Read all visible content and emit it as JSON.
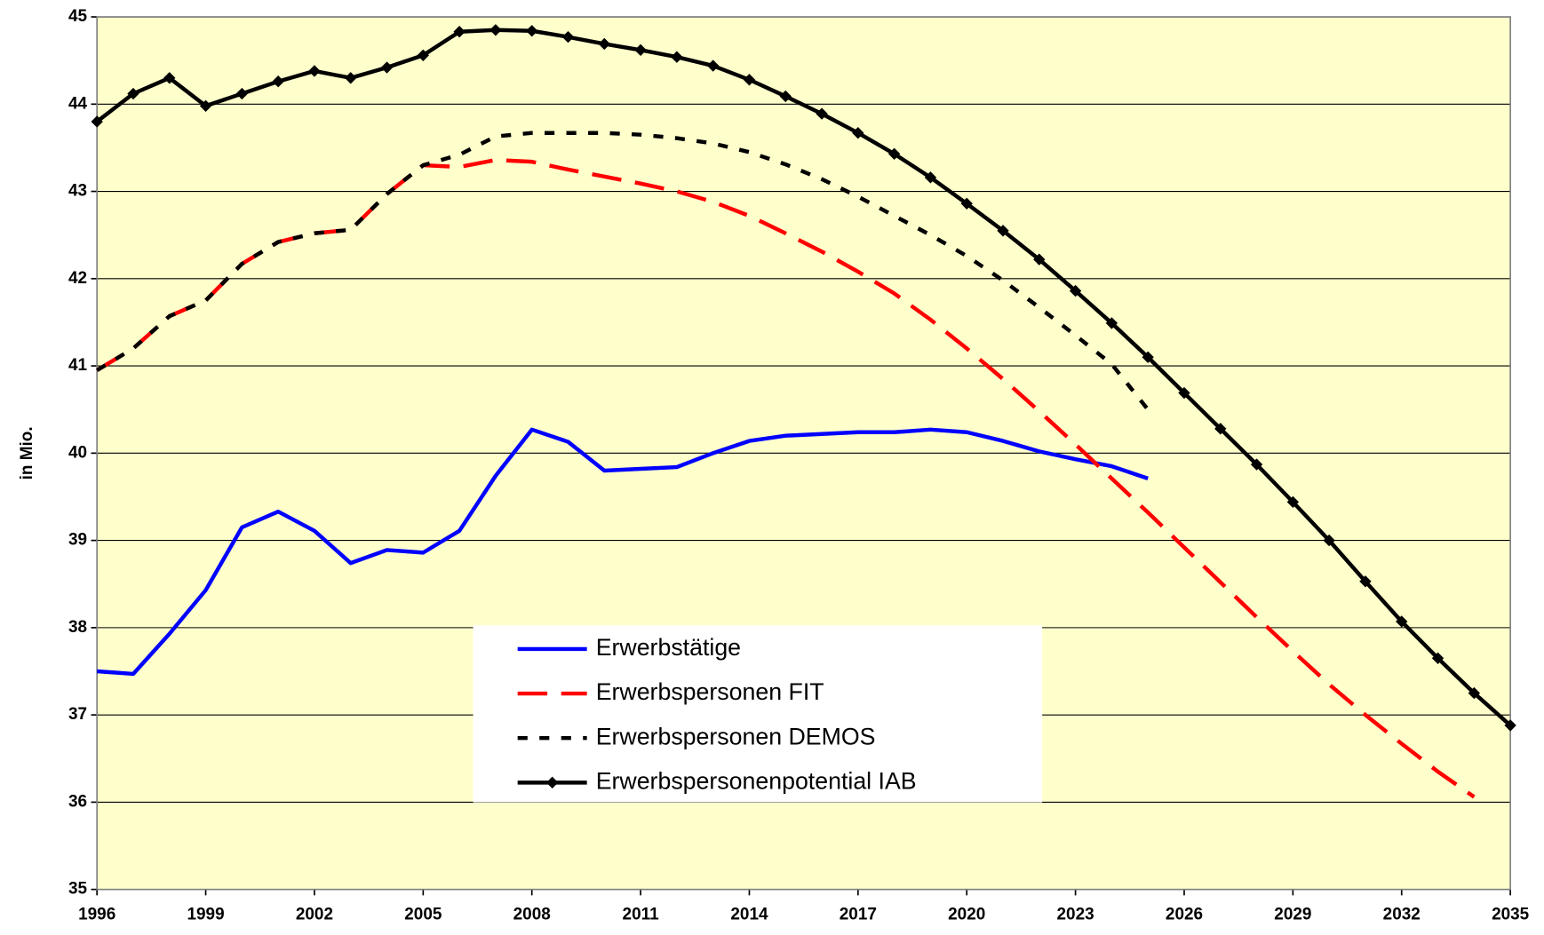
{
  "chart_data": {
    "type": "line",
    "y_label": "in Mio.",
    "x": [
      1996,
      1997,
      1998,
      1999,
      2000,
      2001,
      2002,
      2003,
      2004,
      2005,
      2006,
      2007,
      2008,
      2009,
      2010,
      2011,
      2012,
      2013,
      2014,
      2015,
      2016,
      2017,
      2018,
      2019,
      2020,
      2021,
      2022,
      2023,
      2024,
      2025,
      2026,
      2027,
      2028,
      2029,
      2030,
      2031,
      2032,
      2033,
      2034,
      2035
    ],
    "xlim": [
      1996,
      2035
    ],
    "xticks": [
      1996,
      1999,
      2002,
      2005,
      2008,
      2011,
      2014,
      2017,
      2020,
      2023,
      2026,
      2029,
      2032,
      2035
    ],
    "ylim": [
      35,
      45
    ],
    "yticks": [
      35,
      36,
      37,
      38,
      39,
      40,
      41,
      42,
      43,
      44,
      45
    ],
    "grid": true,
    "background": "#ffffcc",
    "series": [
      {
        "name": "Erwerbstätige",
        "color": "#0000ff",
        "style": "solid",
        "marker": false,
        "values": [
          37.5,
          37.47,
          37.93,
          38.43,
          39.15,
          39.33,
          39.11,
          38.74,
          38.89,
          38.86,
          39.11,
          39.74,
          40.27,
          40.13,
          39.8,
          39.82,
          39.84,
          40.0,
          40.14,
          40.2,
          40.22,
          40.24,
          40.24,
          40.27,
          40.24,
          40.14,
          40.02,
          39.93,
          39.85,
          39.71,
          null,
          null,
          null,
          null,
          null,
          null,
          null,
          null,
          null,
          null
        ]
      },
      {
        "name": "Erwerbspersonen FIT",
        "color": "#ff0000",
        "style": "dash",
        "marker": false,
        "values": [
          40.95,
          41.2,
          41.57,
          41.75,
          42.17,
          42.42,
          42.52,
          42.56,
          42.97,
          43.3,
          43.28,
          43.36,
          43.34,
          43.25,
          43.17,
          43.09,
          43.0,
          42.88,
          42.72,
          42.52,
          42.31,
          42.08,
          41.83,
          41.53,
          41.2,
          40.85,
          40.48,
          40.1,
          39.71,
          39.32,
          38.92,
          38.52,
          38.12,
          37.73,
          37.35,
          37.0,
          36.67,
          36.35,
          36.06,
          null
        ]
      },
      {
        "name": "Erwerbspersonen DEMOS",
        "color": "#000000",
        "style": "dot",
        "marker": false,
        "values": [
          40.95,
          41.2,
          41.57,
          41.75,
          42.17,
          42.42,
          42.52,
          42.56,
          42.97,
          43.3,
          43.42,
          43.63,
          43.67,
          43.67,
          43.67,
          43.65,
          43.61,
          43.55,
          43.45,
          43.31,
          43.14,
          42.94,
          42.72,
          42.5,
          42.26,
          41.98,
          41.67,
          41.35,
          41.02,
          40.5,
          null,
          null,
          null,
          null,
          null,
          null,
          null,
          null,
          null,
          null
        ]
      },
      {
        "name": "Erwerbspersonenpotential IAB",
        "color": "#000000",
        "style": "solid",
        "marker": true,
        "values": [
          43.8,
          44.12,
          44.3,
          43.98,
          44.12,
          44.26,
          44.38,
          44.3,
          44.42,
          44.56,
          44.83,
          44.85,
          44.84,
          44.77,
          44.69,
          44.62,
          44.54,
          44.44,
          44.28,
          44.09,
          43.89,
          43.67,
          43.43,
          43.16,
          42.86,
          42.55,
          42.22,
          41.86,
          41.49,
          41.1,
          40.69,
          40.28,
          39.87,
          39.44,
          39.0,
          38.53,
          38.07,
          37.65,
          37.25,
          36.88
        ]
      }
    ]
  }
}
